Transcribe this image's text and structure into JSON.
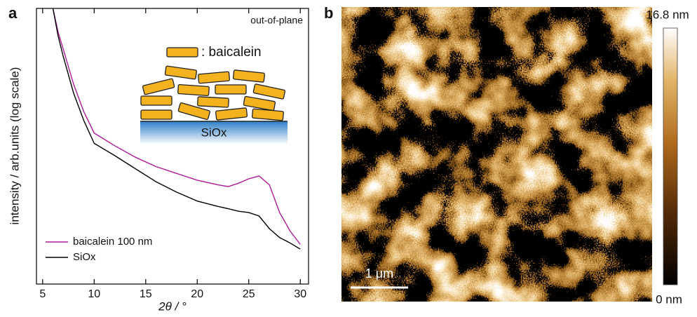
{
  "chart_data": [
    {
      "type": "line",
      "panel_label": "a",
      "xlabel": "2θ / °",
      "ylabel": "intensity / arb.units (log scale)",
      "annotations": [
        "out-of-plane",
        ": baicalein",
        "SiOx"
      ],
      "x": [
        6,
        6.5,
        7,
        8,
        9,
        10,
        12,
        14,
        16,
        18,
        20,
        22,
        23,
        24,
        25,
        26,
        27,
        28,
        29,
        30
      ],
      "series": [
        {
          "name": "baicalein 100 nm",
          "color": "#b0189a",
          "values": [
            10000,
            5500,
            3600,
            1500,
            750,
            440,
            320,
            240,
            190,
            160,
            135,
            120,
            115,
            125,
            140,
            150,
            120,
            60,
            38,
            27
          ]
        },
        {
          "name": "SiOx",
          "color": "#000000",
          "values": [
            10000,
            5000,
            3000,
            1200,
            600,
            340,
            250,
            180,
            130,
            100,
            80,
            70,
            66,
            62,
            60,
            55,
            40,
            32,
            28,
            24
          ]
        }
      ],
      "xlim": [
        4.4,
        30.8
      ],
      "xticks": [
        5,
        10,
        15,
        20,
        25,
        30
      ],
      "ylim": [
        10,
        10000
      ],
      "log_y": true,
      "legend": "lower left"
    }
  ],
  "afm": {
    "panel_label": "b",
    "colorbar": {
      "max_label": "16.8 nm",
      "min_label": "0 nm"
    },
    "scale_bar": "1 μm"
  }
}
